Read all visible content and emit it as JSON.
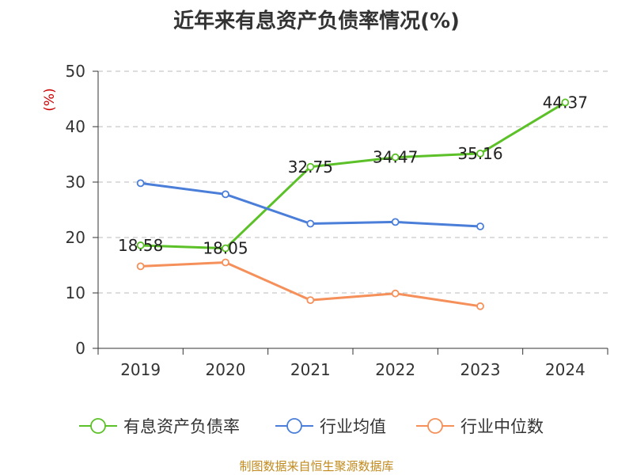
{
  "title": "近年来有息资产负债率情况(%)",
  "source": "制图数据来自恒生聚源数据库",
  "colors": {
    "series_0": "#5cc128",
    "series_1": "#4a7ed9",
    "series_2": "#f5905a",
    "ylabel": "#cc0000",
    "source": "#c08a1e",
    "grid": "#bbbbbb",
    "axis": "#333333"
  },
  "chart_data": {
    "type": "line",
    "title": "近年来有息资产负债率情况(%)",
    "xlabel": "",
    "ylabel": "(%)",
    "categories": [
      "2019",
      "2020",
      "2021",
      "2022",
      "2023",
      "2024"
    ],
    "ylim": [
      0,
      50
    ],
    "yticks": [
      0,
      10,
      20,
      30,
      40,
      50
    ],
    "grid": true,
    "legend_position": "bottom",
    "series": [
      {
        "name": "有息资产负债率",
        "values": [
          18.58,
          18.05,
          32.75,
          34.47,
          35.16,
          44.37
        ],
        "labels": [
          "18.58",
          "18.05",
          "32.75",
          "34.47",
          "35.16",
          "44.37"
        ]
      },
      {
        "name": "行业均值",
        "values": [
          29.8,
          27.8,
          22.5,
          22.8,
          22.0,
          null
        ]
      },
      {
        "name": "行业中位数",
        "values": [
          14.8,
          15.5,
          8.7,
          9.9,
          7.6,
          null
        ]
      }
    ]
  }
}
